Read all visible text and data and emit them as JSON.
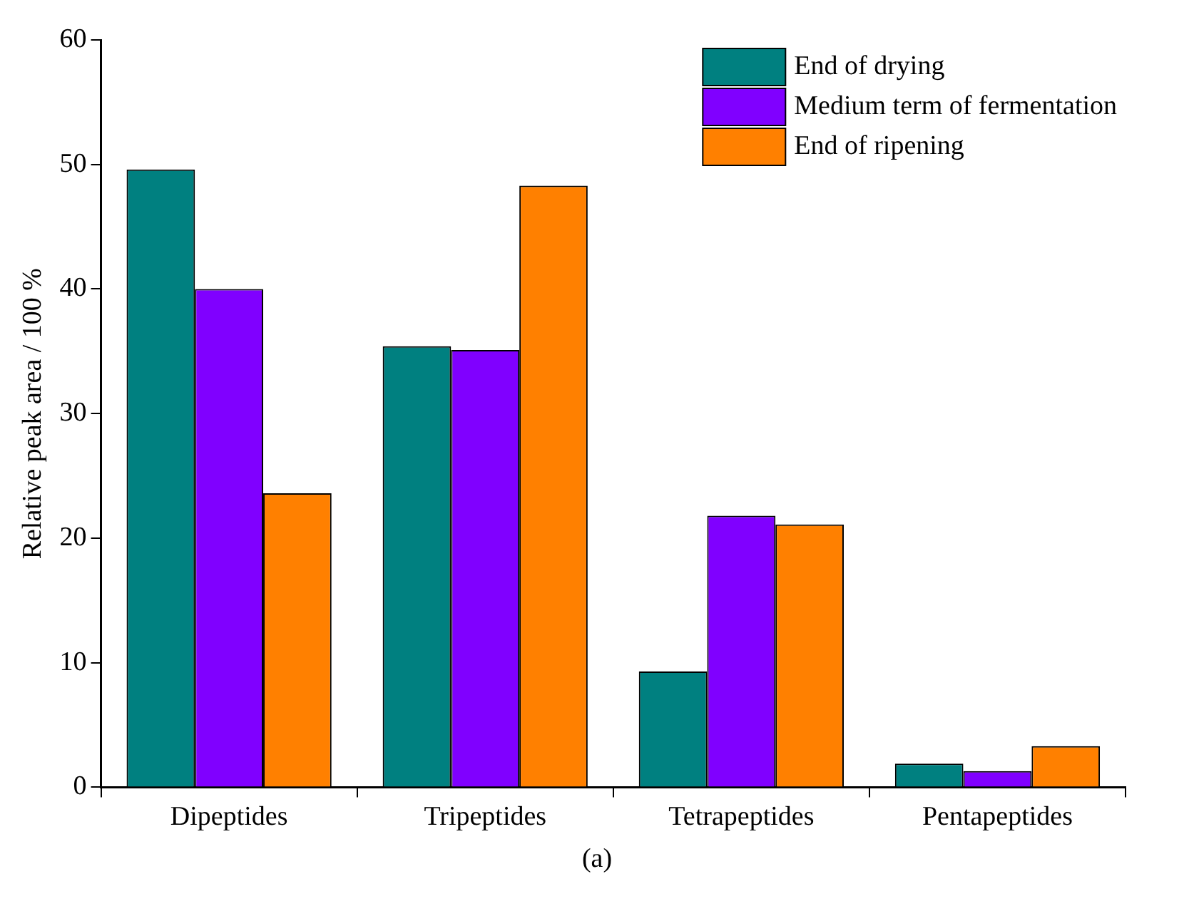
{
  "chart_data": {
    "type": "bar",
    "ylabel": "Relative peak area / 100 %",
    "categories": [
      "Dipeptides",
      "Tripeptides",
      "Tetrapeptides",
      "Pentapeptides"
    ],
    "series": [
      {
        "name": "End of drying",
        "color": "#008080",
        "values": [
          49.6,
          35.4,
          9.3,
          1.9
        ]
      },
      {
        "name": "Medium term of fermentation",
        "color": "#8000ff",
        "values": [
          40.0,
          35.1,
          21.8,
          1.3
        ]
      },
      {
        "name": "End of ripening",
        "color": "#ff8000",
        "values": [
          23.6,
          48.3,
          21.1,
          3.3
        ]
      }
    ],
    "ylim": [
      0,
      60
    ],
    "yticks": [
      0,
      10,
      20,
      30,
      40,
      50,
      60
    ],
    "grid": false,
    "legend": "top right",
    "annotations": [
      "(a)"
    ]
  }
}
